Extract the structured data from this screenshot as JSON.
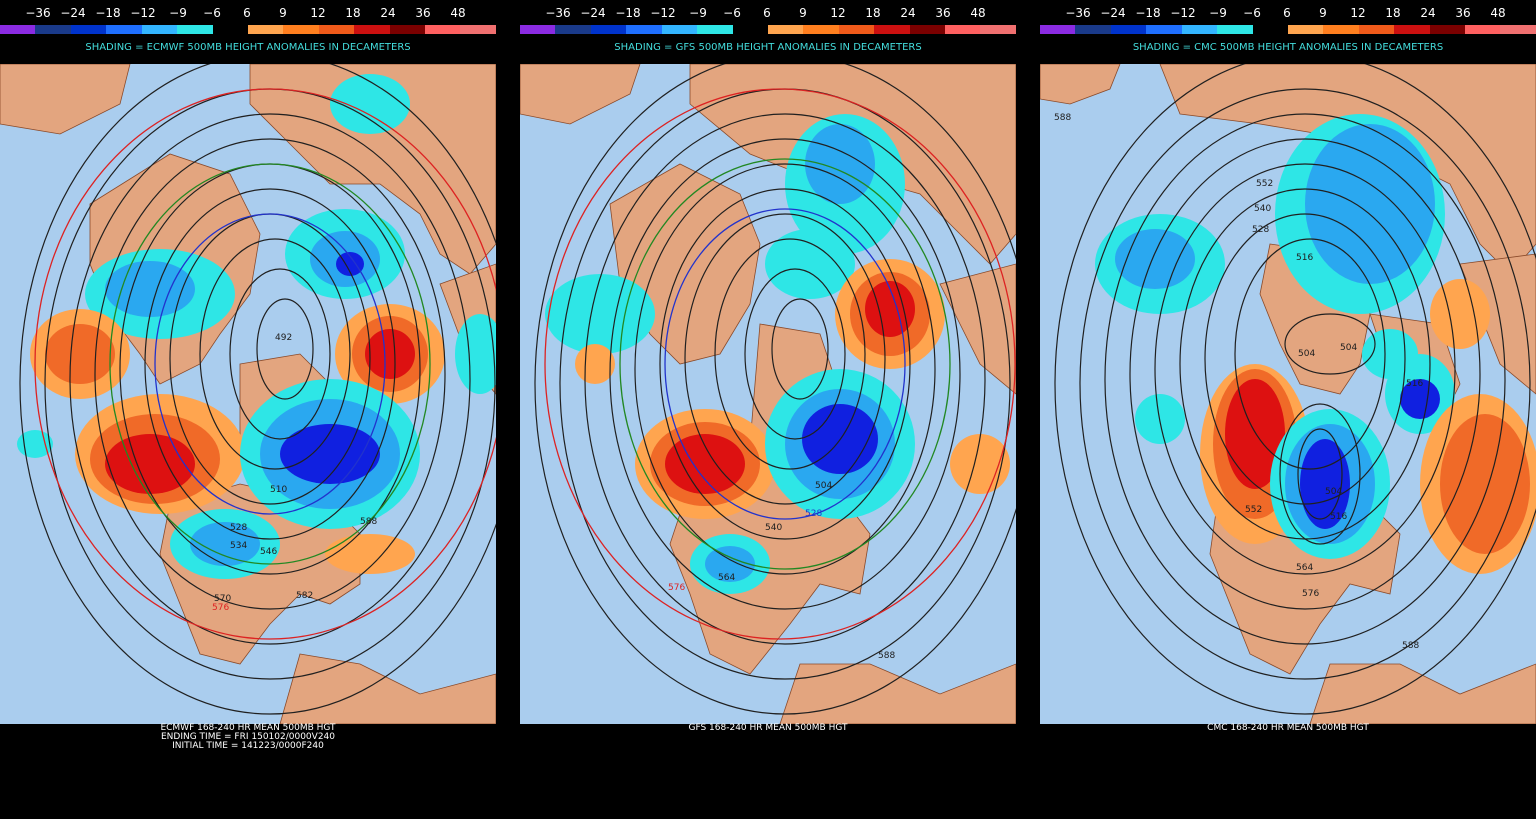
{
  "legend": {
    "labels": [
      "−36",
      "−24",
      "−18",
      "−12",
      "−9",
      "−6",
      "6",
      "9",
      "12",
      "18",
      "24",
      "36",
      "48"
    ],
    "colors": [
      "#8b2be2",
      "#1a3a8a",
      "#0033cc",
      "#1f6fff",
      "#33b5ff",
      "#2ee6e6",
      "#000000",
      "#ffa54f",
      "#ff7f1f",
      "#f05a1a",
      "#cc1010",
      "#7a0000",
      "#ff6060",
      "#f07070"
    ]
  },
  "colors": {
    "land": "#e3a57f",
    "ocean": "#aacdee",
    "cool_light": "#2ee6e6",
    "cool_mid": "#2aa8f0",
    "cool_deep": "#1020e0",
    "warm_light": "#ffa54f",
    "warm_mid": "#f06a28",
    "warm_deep": "#dd1111",
    "contour": "#202020"
  },
  "panels": [
    {
      "model": "ECMWF",
      "shading_title": "SHADING = ECMWF 500MB HEIGHT ANOMALIES IN DECAMETERS",
      "footer": [
        "ECMWF 168-240 HR MEAN 500MB HGT",
        "ENDING TIME = FRI 150102/0000V240",
        "INITIAL TIME = 141223/0000F240"
      ],
      "contour_labels": [
        "492",
        "510",
        "528",
        "534",
        "546",
        "570",
        "576",
        "582",
        "588"
      ]
    },
    {
      "model": "GFS",
      "shading_title": "SHADING = GFS 500MB HEIGHT ANOMALIES IN DECAMETERS",
      "footer": [
        "GFS 168-240 HR MEAN 500MB HGT"
      ],
      "contour_labels": [
        "504",
        "528",
        "540",
        "564",
        "576",
        "588"
      ]
    },
    {
      "model": "CMC",
      "shading_title": "SHADING = CMC 500MB HEIGHT ANOMALIES IN DECAMETERS",
      "footer": [
        "CMC 168-240 HR MEAN 500MB HGT"
      ],
      "contour_labels": [
        "588",
        "552",
        "540",
        "528",
        "516",
        "504",
        "504",
        "516",
        "504",
        "516",
        "552",
        "564",
        "576",
        "588"
      ]
    }
  ]
}
